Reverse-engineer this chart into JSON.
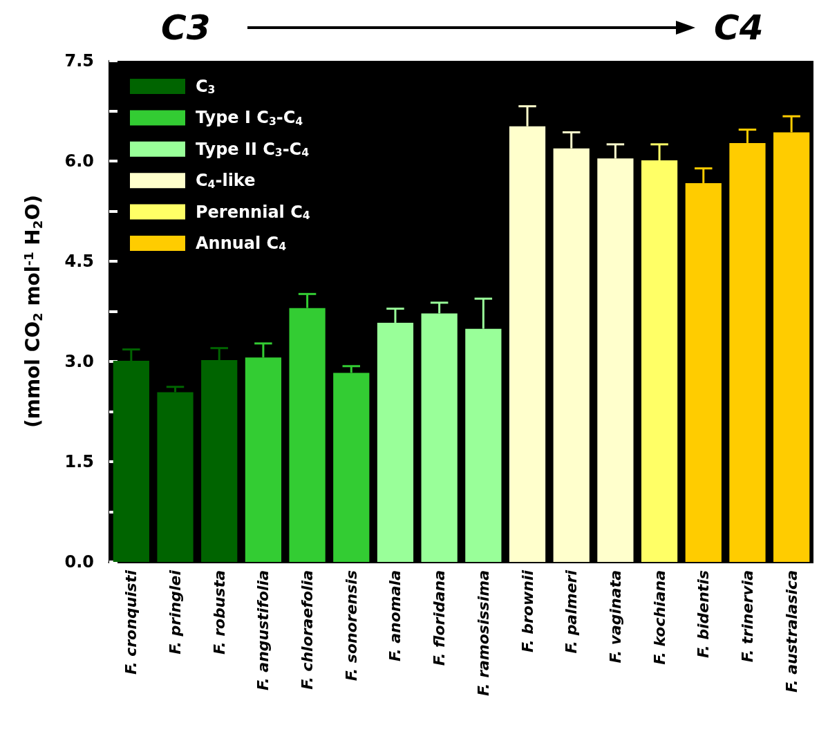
{
  "chart_data": {
    "type": "bar",
    "stacked": true,
    "categories": [
      "F. cronquisti",
      "F. pringlei",
      "F. robusta",
      "F. angustifolia",
      "F. chloraefolia",
      "F. sonorensis",
      "F. anomala",
      "F. floridana",
      "F. ramosissima",
      "F. brownii",
      "F. palmeri",
      "F. vaginata",
      "F. kochiana",
      "F. bidentis",
      "F. trinervia",
      "F. australasica"
    ],
    "series": [
      {
        "name": "C$_{3}$",
        "color": "#006400",
        "values": [
          3.01,
          2.54,
          3.02,
          null,
          null,
          null,
          null,
          null,
          null,
          null,
          null,
          null,
          null,
          null,
          null,
          null
        ],
        "errors": [
          [
            3.01,
            3.18
          ],
          [
            2.54,
            2.62
          ],
          [
            3.02,
            3.2
          ],
          null,
          null,
          null,
          null,
          null,
          null,
          null,
          null,
          null,
          null,
          null,
          null,
          null
        ]
      },
      {
        "name": "Type I C$_{3}$-C$_{4}$",
        "color": "#33cc33",
        "values": [
          null,
          null,
          null,
          3.06,
          3.8,
          2.83,
          null,
          null,
          null,
          null,
          null,
          null,
          null,
          null,
          null,
          null
        ],
        "errors": [
          null,
          null,
          null,
          [
            3.06,
            3.27
          ],
          [
            3.8,
            4.01
          ],
          [
            2.83,
            2.93
          ],
          null,
          null,
          null,
          null,
          null,
          null,
          null,
          null,
          null,
          null
        ]
      },
      {
        "name": "Type II C$_{3}$-C$_{4}$",
        "color": "#99ff99",
        "values": [
          null,
          null,
          null,
          null,
          null,
          null,
          3.58,
          3.72,
          3.49,
          null,
          null,
          null,
          null,
          null,
          null,
          null
        ],
        "errors": [
          null,
          null,
          null,
          null,
          null,
          null,
          [
            3.58,
            3.79
          ],
          [
            3.72,
            3.88
          ],
          [
            3.49,
            3.94
          ],
          null,
          null,
          null,
          null,
          null,
          null,
          null
        ]
      },
      {
        "name": "C$_{4}$-like",
        "color": "#ffffcc",
        "values": [
          null,
          null,
          null,
          null,
          null,
          null,
          null,
          null,
          null,
          6.52,
          6.19,
          6.04,
          null,
          null,
          null,
          null
        ],
        "errors": [
          null,
          null,
          null,
          null,
          null,
          null,
          null,
          null,
          null,
          [
            6.52,
            6.82
          ],
          [
            6.19,
            6.43
          ],
          [
            6.04,
            6.25
          ],
          null,
          null,
          null,
          null
        ]
      },
      {
        "name": "Perennial C$_{4}$",
        "color": "#ffff66",
        "values": [
          null,
          null,
          null,
          null,
          null,
          null,
          null,
          null,
          null,
          null,
          null,
          null,
          6.01,
          null,
          null,
          null
        ],
        "errors": [
          null,
          null,
          null,
          null,
          null,
          null,
          null,
          null,
          null,
          null,
          null,
          null,
          [
            6.01,
            6.25
          ],
          null,
          null,
          null
        ]
      },
      {
        "name": "Annual C$_{4}$",
        "color": "#ffcc00",
        "values": [
          null,
          null,
          null,
          null,
          null,
          null,
          null,
          null,
          null,
          null,
          null,
          null,
          null,
          5.67,
          6.27,
          6.43
        ],
        "errors": [
          null,
          null,
          null,
          null,
          null,
          null,
          null,
          null,
          null,
          null,
          null,
          null,
          null,
          [
            5.67,
            5.89
          ],
          [
            6.27,
            6.47
          ],
          [
            6.43,
            6.67
          ]
        ]
      }
    ],
    "ylabel": "(mmol CO$_{2}$ mol$^{-1}$ H$_{2}$O)",
    "ylim": [
      0,
      7.5
    ],
    "yticks": [
      {
        "value": 0,
        "label": "0.0"
      },
      {
        "value": 0.75,
        "label": null
      },
      {
        "value": 1.5,
        "label": "1.5"
      },
      {
        "value": 2.25,
        "label": null
      },
      {
        "value": 3,
        "label": "3.0"
      },
      {
        "value": 3.75,
        "label": null
      },
      {
        "value": 4.5,
        "label": "4.5"
      },
      {
        "value": 5.25,
        "label": null
      },
      {
        "value": 6,
        "label": "6.0"
      },
      {
        "value": 6.75,
        "label": null
      },
      {
        "value": 7.5,
        "label": "7.5"
      }
    ],
    "annotations": [
      "C3",
      "C4"
    ],
    "grid": false,
    "legend": "top left"
  }
}
